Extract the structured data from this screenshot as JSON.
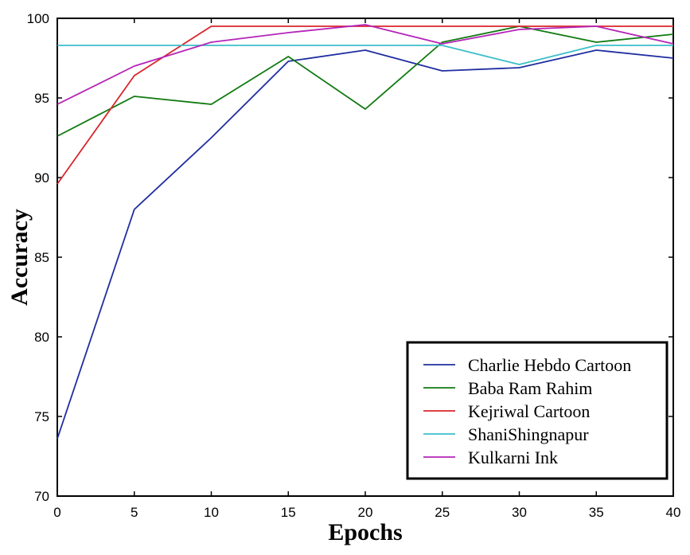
{
  "chart_data": {
    "type": "line",
    "title": "",
    "xlabel": "Epochs",
    "ylabel": "Accuracy",
    "xlim": [
      0,
      40
    ],
    "ylim": [
      70,
      100
    ],
    "xticks": [
      0,
      5,
      10,
      15,
      20,
      25,
      30,
      35,
      40
    ],
    "yticks": [
      70,
      75,
      80,
      85,
      90,
      95,
      100
    ],
    "grid": false,
    "legend_position": "bottom-right",
    "x": [
      0,
      5,
      10,
      15,
      20,
      25,
      30,
      35,
      40
    ],
    "series": [
      {
        "name": "Charlie Hebdo Cartoon",
        "color": "#1f2ea0",
        "values": [
          73.6,
          88.0,
          92.5,
          97.3,
          98.0,
          96.7,
          96.9,
          98.0,
          97.5
        ]
      },
      {
        "name": "Baba Ram Rahim",
        "color": "#117a11",
        "values": [
          92.6,
          95.1,
          94.6,
          97.6,
          94.3,
          98.5,
          99.5,
          98.5,
          99.0
        ]
      },
      {
        "name": "Kejriwal Cartoon",
        "color": "#d9262b",
        "values": [
          89.6,
          96.4,
          99.5,
          99.5,
          99.5,
          99.5,
          99.5,
          99.5,
          99.5
        ]
      },
      {
        "name": "ShaniShingnapur",
        "color": "#3bbfc9",
        "values": [
          98.3,
          98.3,
          98.3,
          98.3,
          98.3,
          98.3,
          97.1,
          98.3,
          98.3
        ]
      },
      {
        "name": "Kulkarni Ink",
        "color": "#b524b8",
        "values": [
          94.6,
          97.0,
          98.5,
          99.1,
          99.6,
          98.4,
          99.3,
          99.5,
          98.4
        ]
      }
    ]
  }
}
